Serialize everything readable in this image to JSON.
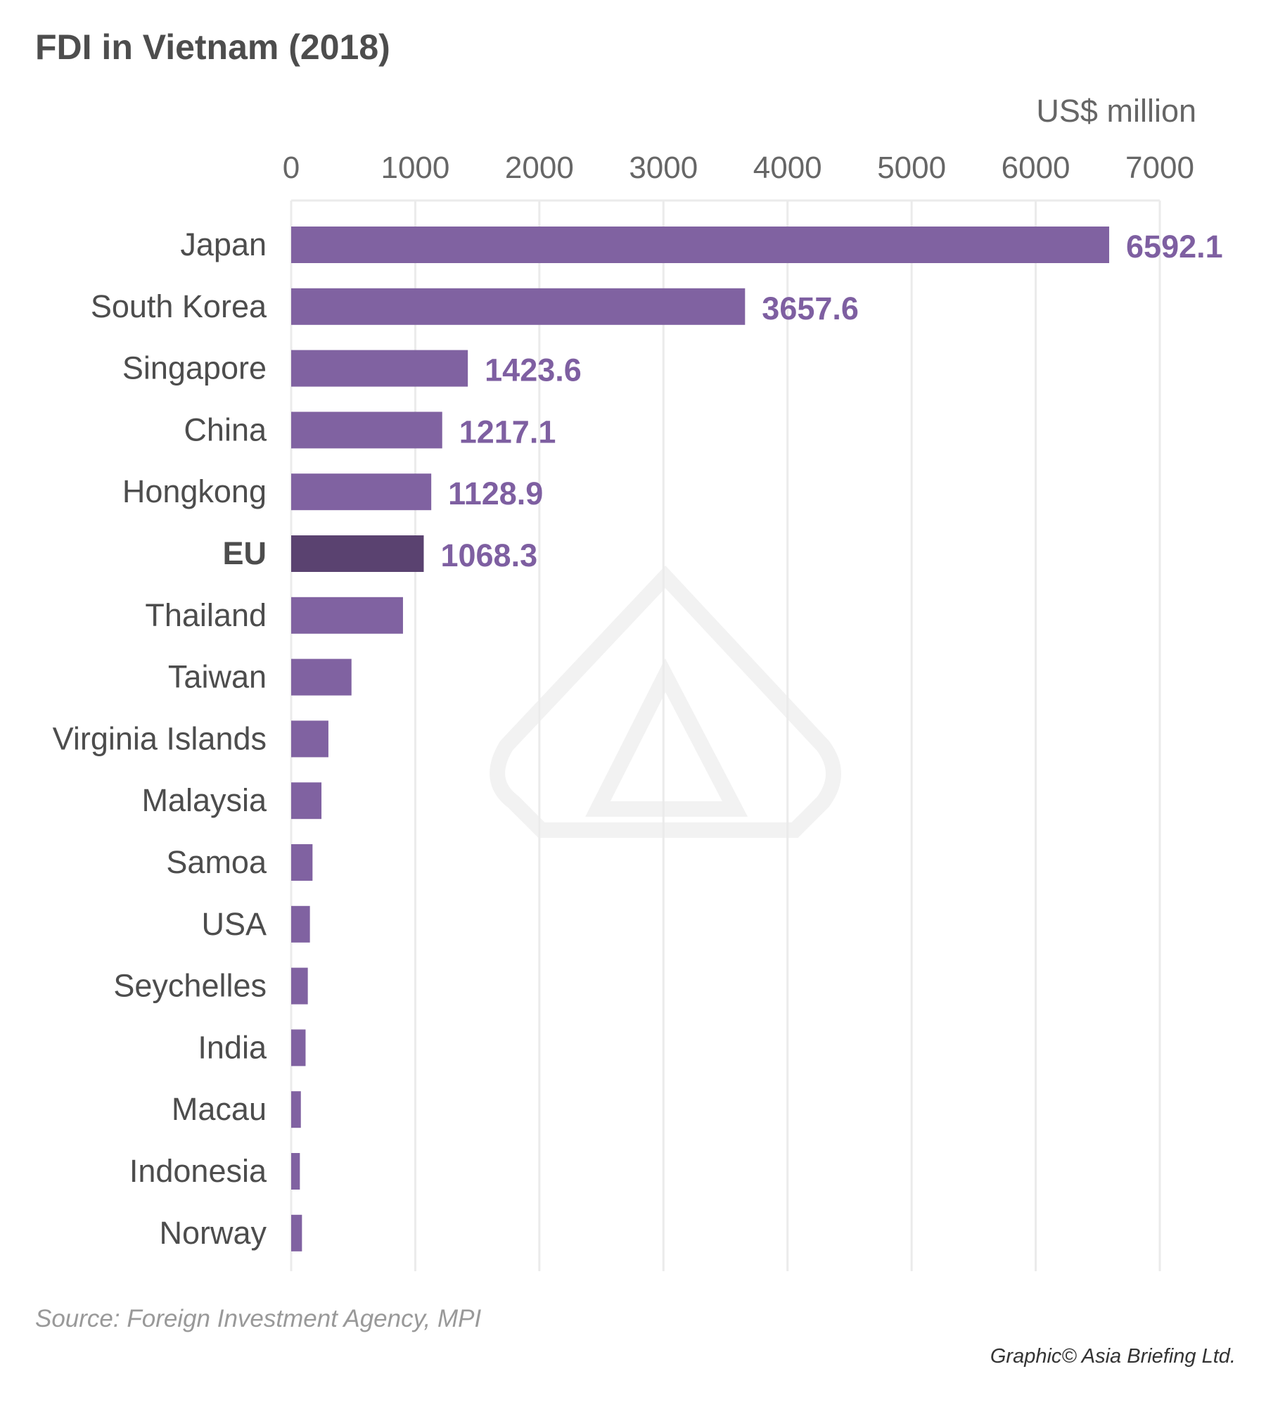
{
  "chart_data": {
    "type": "bar",
    "orientation": "horizontal",
    "title": "FDI in Vietnam (2018)",
    "unit_label": "US$ million",
    "xlim": [
      0,
      7000
    ],
    "xticks": [
      "0",
      "1000",
      "2000",
      "3000",
      "4000",
      "5000",
      "6000",
      "7000"
    ],
    "grid": true,
    "categories": [
      "Japan",
      "South Korea",
      "Singapore",
      "China",
      "Hongkong",
      "EU",
      "Thailand",
      "Taiwan",
      "Virginia Islands",
      "Malaysia",
      "Samoa",
      "USA",
      "Seychelles",
      "India",
      "Macau",
      "Indonesia",
      "Norway"
    ],
    "values": [
      6592.1,
      3657.6,
      1423.6,
      1217.1,
      1128.9,
      1068.3,
      901,
      486,
      300,
      244,
      172,
      151,
      134,
      116,
      78,
      70,
      87
    ],
    "data_labels": [
      "6592.1",
      "3657.6",
      "1423.6",
      "1217.1",
      "1128.9",
      "1068.3",
      "",
      "",
      "",
      "",
      "",
      "",
      "",
      "",
      "",
      "",
      ""
    ],
    "highlight_category": "EU",
    "colors": {
      "bar": "#8062a1",
      "highlight": "#5a4270",
      "label": "#7e5fa1",
      "grid": "#ebebeb"
    }
  },
  "footer": {
    "source": "Source: Foreign Investment Agency, MPI",
    "credit": "Graphic© Asia Briefing Ltd."
  }
}
